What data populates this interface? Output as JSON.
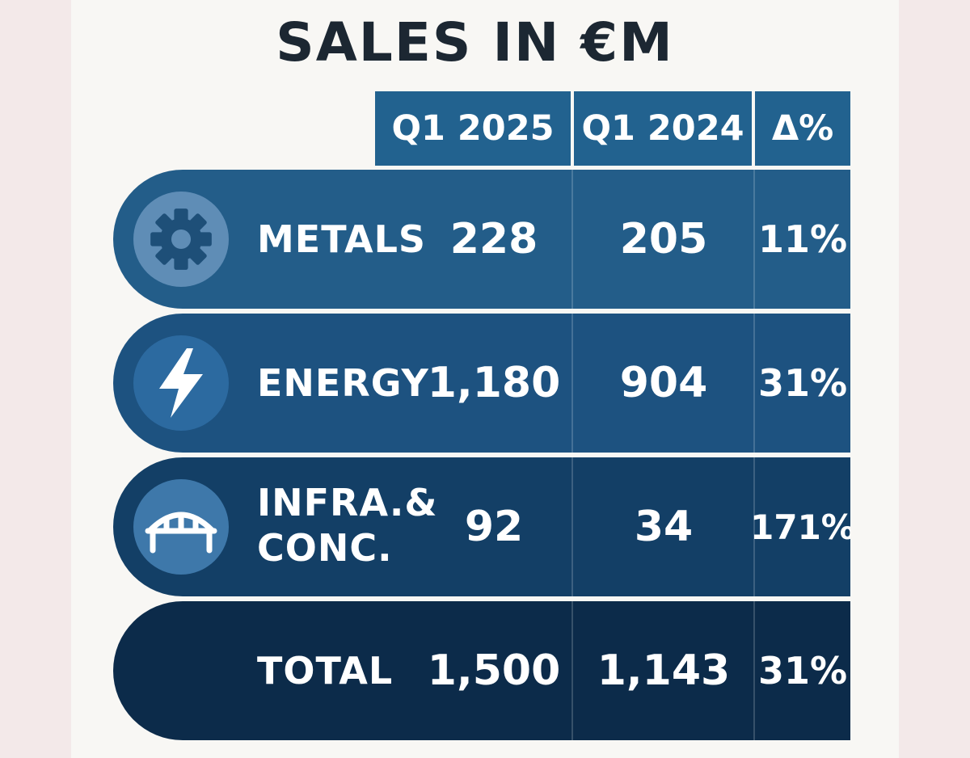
{
  "chart_data": {
    "type": "table",
    "title": "SALES IN €M",
    "columns": [
      "Q1 2025",
      "Q1 2024",
      "Δ%"
    ],
    "rows": [
      {
        "label": "METALS",
        "icon": "gear-icon",
        "values": [
          "228",
          "205",
          "11%"
        ]
      },
      {
        "label": "ENERGY",
        "icon": "lightning-icon",
        "values": [
          "1,180",
          "904",
          "31%"
        ]
      },
      {
        "label": "INFRA.& CONC.",
        "label_lines": [
          "INFRA.&",
          "CONC."
        ],
        "icon": "bridge-icon",
        "values": [
          "92",
          "34",
          "171%"
        ]
      },
      {
        "label": "TOTAL",
        "icon": null,
        "values": [
          "1,500",
          "1,143",
          "31%"
        ]
      }
    ]
  },
  "colors": {
    "header": "#22628f",
    "row_metals": "#235d89",
    "row_energy": "#1d5280",
    "row_infra": "#133f66",
    "row_total": "#0c2b4a",
    "icon_metals_bg": "#5f8db6",
    "icon_energy_bg": "#2c6aa0",
    "icon_infra_bg": "#3e78aa"
  }
}
